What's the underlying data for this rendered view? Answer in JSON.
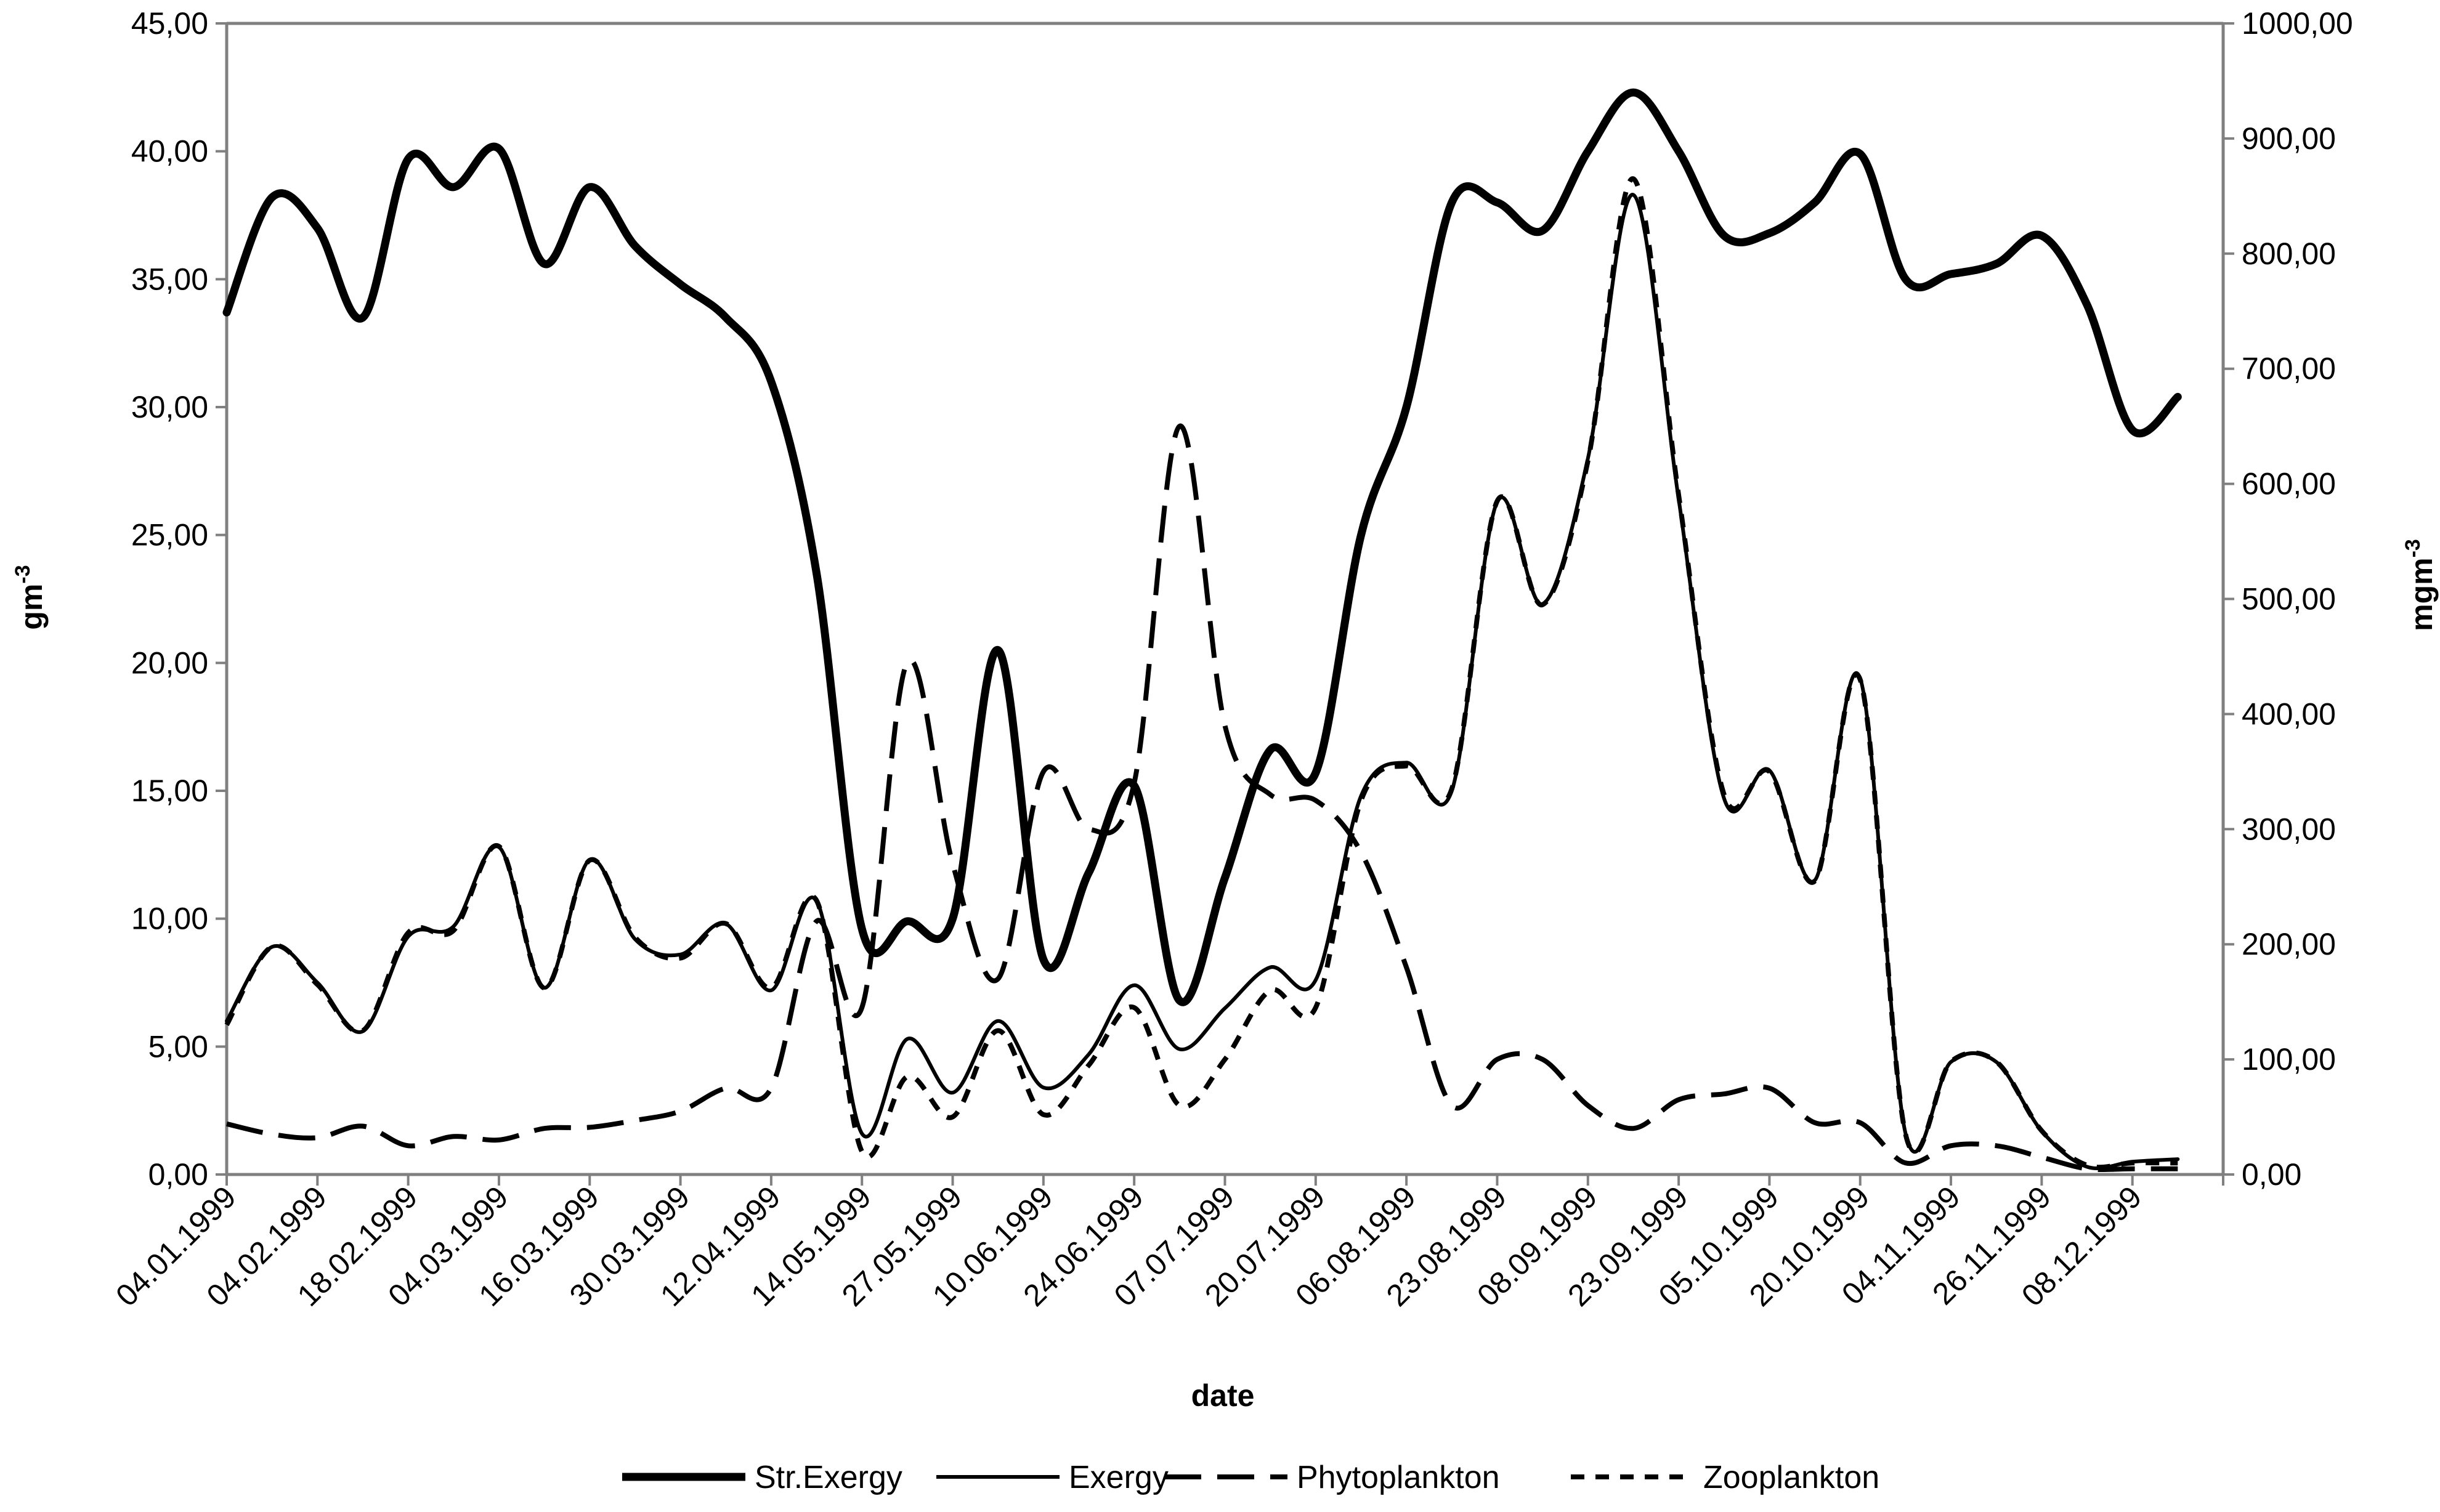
{
  "chart_data": {
    "type": "line",
    "xlabel": "date",
    "ylabel_left": "gm",
    "ylabel_left_sup": "-3",
    "ylabel_right": "mgm",
    "ylabel_right_sup": "-3",
    "ylim_left": [
      0,
      45
    ],
    "ylim_right": [
      0,
      1000
    ],
    "grid": false,
    "legend_position": "bottom",
    "y_left_ticks": [
      "0,00",
      "5,00",
      "10,00",
      "15,00",
      "20,00",
      "25,00",
      "30,00",
      "35,00",
      "40,00",
      "45,00"
    ],
    "y_right_ticks": [
      "0,00",
      "100,00",
      "200,00",
      "300,00",
      "400,00",
      "500,00",
      "600,00",
      "700,00",
      "800,00",
      "900,00",
      "1000,00"
    ],
    "x_tick_labels": [
      "04.01.1999",
      "04.02.1999",
      "18.02.1999",
      "04.03.1999",
      "16.03.1999",
      "30.03.1999",
      "12.04.1999",
      "14.05.1999",
      "27.05.1999",
      "10.06.1999",
      "24.06.1999",
      "07.07.1999",
      "20.07.1999",
      "06.08.1999",
      "23.08.1999",
      "08.09.1999",
      "23.09.1999",
      "05.10.1999",
      "20.10.1999",
      "04.11.1999",
      "26.11.1999",
      "08.12.1999"
    ],
    "x_points": [
      0,
      0.5,
      1,
      1.5,
      2,
      2.5,
      3,
      3.5,
      4,
      4.5,
      5,
      5.5,
      6,
      6.5,
      7,
      7.5,
      8,
      8.5,
      9,
      9.5,
      10,
      10.5,
      11,
      11.5,
      12,
      12.5,
      13,
      13.5,
      14,
      14.5,
      15,
      15.5,
      16,
      16.5,
      17,
      17.5,
      18,
      18.5,
      19,
      19.5,
      20,
      20.5,
      21,
      21.5
    ],
    "series": [
      {
        "name": "Str.Exergy",
        "axis": "left",
        "style": "thick",
        "values": [
          33.7,
          38.2,
          37.0,
          33.5,
          39.7,
          38.6,
          40.1,
          35.6,
          38.6,
          36.3,
          34.8,
          33.5,
          31.0,
          23.5,
          9.6,
          9.9,
          10.0,
          20.5,
          8.4,
          11.8,
          15.2,
          6.8,
          11.6,
          16.6,
          15.7,
          25.0,
          30.0,
          38.0,
          38.0,
          36.9,
          40.0,
          42.3,
          40.0,
          36.7,
          36.8,
          38.0,
          39.9,
          35.0,
          35.2,
          35.6,
          36.7,
          34.0,
          29.1,
          30.4
        ]
      },
      {
        "name": "Exergy",
        "axis": "left",
        "style": "thin",
        "values": [
          6.0,
          8.9,
          7.5,
          5.6,
          9.3,
          9.7,
          12.8,
          7.3,
          12.3,
          9.2,
          8.6,
          9.8,
          7.2,
          10.7,
          1.6,
          5.3,
          3.2,
          6.0,
          3.4,
          4.7,
          7.4,
          4.9,
          6.5,
          8.1,
          7.6,
          14.8,
          16.1,
          15.0,
          26.3,
          22.3,
          28.0,
          38.3,
          26.4,
          14.7,
          15.8,
          11.5,
          19.4,
          1.6,
          4.4,
          4.4,
          1.7,
          0.3,
          0.5,
          0.6
        ]
      },
      {
        "name": "Phytoplankton",
        "axis": "right",
        "style": "dashed",
        "values": [
          44,
          35,
          32,
          42,
          25,
          33,
          30,
          40,
          41,
          47,
          55,
          75,
          75,
          220,
          145,
          445,
          270,
          170,
          350,
          300,
          340,
          650,
          390,
          330,
          325,
          280,
          180,
          60,
          100,
          100,
          60,
          40,
          65,
          70,
          75,
          45,
          45,
          10,
          25,
          25,
          15,
          5,
          5,
          5
        ]
      },
      {
        "name": "Zooplankton",
        "axis": "right",
        "style": "dotted",
        "values": [
          130,
          198,
          165,
          125,
          210,
          212,
          285,
          162,
          273,
          206,
          188,
          218,
          162,
          238,
          20,
          85,
          50,
          125,
          52,
          95,
          145,
          60,
          100,
          160,
          145,
          325,
          355,
          335,
          585,
          495,
          620,
          865,
          590,
          330,
          350,
          255,
          430,
          35,
          98,
          98,
          38,
          8,
          10,
          10
        ]
      }
    ]
  },
  "legend": {
    "items": [
      {
        "label": "Str.Exergy",
        "style": "thick"
      },
      {
        "label": "Exergy",
        "style": "thin"
      },
      {
        "label": "Phytoplankton",
        "style": "dashed"
      },
      {
        "label": "Zooplankton",
        "style": "dotted"
      }
    ]
  },
  "colors": {
    "line": "#000000",
    "axis": "#808080",
    "background": "#ffffff"
  }
}
